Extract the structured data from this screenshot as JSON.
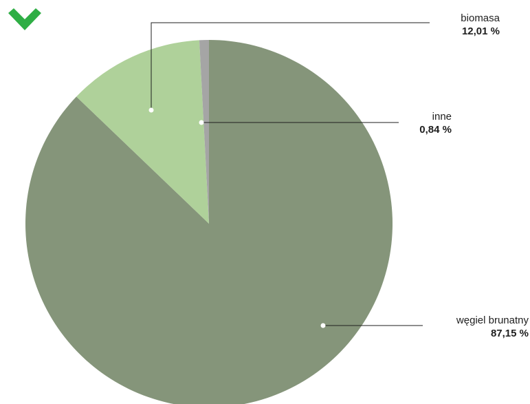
{
  "colors": {
    "wegiel_brunatny": "#85957a",
    "biomasa": "#afd19a",
    "inne": "#a5a5a5",
    "leader_line": "#1e1e1e",
    "checkmark": "#2fae45"
  },
  "icon": "green-checkmark-icon",
  "chart_data": {
    "type": "pie",
    "slices": [
      {
        "label": "węgiel brunatny",
        "value": 87.15,
        "value_label": "87,15 %",
        "color": "#85957a"
      },
      {
        "label": "biomasa",
        "value": 12.01,
        "value_label": "12,01 %",
        "color": "#afd19a"
      },
      {
        "label": "inne",
        "value": 0.84,
        "value_label": "0,84 %",
        "color": "#a5a5a5"
      }
    ],
    "labels": {
      "biomasa": {
        "name": "biomasa",
        "value": "12,01 %"
      },
      "inne": {
        "name": "inne",
        "value": "0,84 %"
      },
      "wegiel": {
        "name": "węgiel brunatny",
        "value": "87,15 %"
      }
    }
  }
}
